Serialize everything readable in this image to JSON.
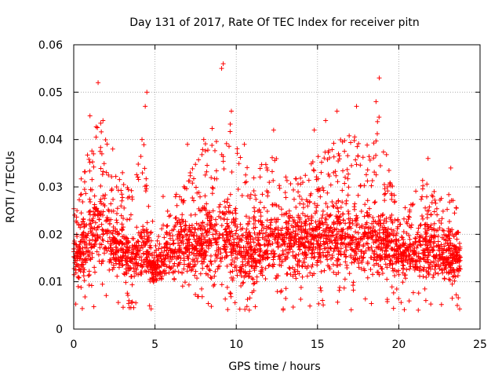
{
  "chart_data": {
    "type": "scatter",
    "title": "Day 131 of 2017, Rate Of TEC Index for receiver pitn",
    "xlabel": "GPS time / hours",
    "ylabel": "ROTI / TECUs",
    "xlim": [
      0,
      25
    ],
    "ylim": [
      0,
      0.06
    ],
    "xticks": [
      0,
      5,
      10,
      15,
      20,
      25
    ],
    "xtick_labels": [
      "0",
      "5",
      "10",
      "15",
      "20",
      "25"
    ],
    "yticks": [
      0,
      0.01,
      0.02,
      0.03,
      0.04,
      0.05,
      0.06
    ],
    "ytick_labels": [
      "0",
      "0.01",
      "0.02",
      "0.03",
      "0.04",
      "0.05",
      "0.06"
    ],
    "grid": true,
    "marker": "plus",
    "marker_color": "#ff0000",
    "series": [
      {
        "name": "ROTI",
        "x_range": [
          0,
          23.8
        ],
        "sample_points": [
          {
            "x": 0.2,
            "y": 0.025
          },
          {
            "x": 0.6,
            "y": 0.012
          },
          {
            "x": 1.0,
            "y": 0.045
          },
          {
            "x": 1.5,
            "y": 0.052
          },
          {
            "x": 1.8,
            "y": 0.044
          },
          {
            "x": 2.4,
            "y": 0.038
          },
          {
            "x": 3.0,
            "y": 0.033
          },
          {
            "x": 3.4,
            "y": 0.006
          },
          {
            "x": 4.2,
            "y": 0.04
          },
          {
            "x": 4.4,
            "y": 0.047
          },
          {
            "x": 4.5,
            "y": 0.05
          },
          {
            "x": 5.5,
            "y": 0.028
          },
          {
            "x": 7.0,
            "y": 0.039
          },
          {
            "x": 8.0,
            "y": 0.04
          },
          {
            "x": 9.1,
            "y": 0.055
          },
          {
            "x": 9.2,
            "y": 0.056
          },
          {
            "x": 9.7,
            "y": 0.046
          },
          {
            "x": 10.5,
            "y": 0.039
          },
          {
            "x": 10.8,
            "y": 0.004
          },
          {
            "x": 12.3,
            "y": 0.042
          },
          {
            "x": 14.8,
            "y": 0.042
          },
          {
            "x": 15.5,
            "y": 0.044
          },
          {
            "x": 16.2,
            "y": 0.046
          },
          {
            "x": 17.4,
            "y": 0.047
          },
          {
            "x": 18.6,
            "y": 0.048
          },
          {
            "x": 18.8,
            "y": 0.053
          },
          {
            "x": 19.3,
            "y": 0.03
          },
          {
            "x": 21.2,
            "y": 0.004
          },
          {
            "x": 21.8,
            "y": 0.036
          },
          {
            "x": 23.2,
            "y": 0.034
          },
          {
            "x": 23.6,
            "y": 0.005
          }
        ],
        "envelope": [
          {
            "x": 0.0,
            "typical_low": 0.01,
            "typical_high": 0.02,
            "peak": 0.028
          },
          {
            "x": 1.0,
            "typical_low": 0.01,
            "typical_high": 0.025,
            "peak": 0.046
          },
          {
            "x": 1.6,
            "typical_low": 0.012,
            "typical_high": 0.03,
            "peak": 0.052
          },
          {
            "x": 2.5,
            "typical_low": 0.01,
            "typical_high": 0.024,
            "peak": 0.038
          },
          {
            "x": 3.5,
            "typical_low": 0.008,
            "typical_high": 0.02,
            "peak": 0.033
          },
          {
            "x": 4.4,
            "typical_low": 0.01,
            "typical_high": 0.022,
            "peak": 0.05
          },
          {
            "x": 5.0,
            "typical_low": 0.009,
            "typical_high": 0.015,
            "peak": 0.02
          },
          {
            "x": 6.0,
            "typical_low": 0.01,
            "typical_high": 0.022,
            "peak": 0.029
          },
          {
            "x": 7.5,
            "typical_low": 0.01,
            "typical_high": 0.024,
            "peak": 0.04
          },
          {
            "x": 9.2,
            "typical_low": 0.01,
            "typical_high": 0.028,
            "peak": 0.056
          },
          {
            "x": 10.5,
            "typical_low": 0.008,
            "typical_high": 0.022,
            "peak": 0.04
          },
          {
            "x": 12.3,
            "typical_low": 0.01,
            "typical_high": 0.026,
            "peak": 0.042
          },
          {
            "x": 14.0,
            "typical_low": 0.01,
            "typical_high": 0.025,
            "peak": 0.036
          },
          {
            "x": 16.0,
            "typical_low": 0.01,
            "typical_high": 0.028,
            "peak": 0.046
          },
          {
            "x": 17.5,
            "typical_low": 0.01,
            "typical_high": 0.027,
            "peak": 0.047
          },
          {
            "x": 18.8,
            "typical_low": 0.01,
            "typical_high": 0.026,
            "peak": 0.053
          },
          {
            "x": 20.0,
            "typical_low": 0.01,
            "typical_high": 0.02,
            "peak": 0.025
          },
          {
            "x": 21.5,
            "typical_low": 0.01,
            "typical_high": 0.022,
            "peak": 0.036
          },
          {
            "x": 23.8,
            "typical_low": 0.009,
            "typical_high": 0.02,
            "peak": 0.03
          }
        ]
      }
    ]
  }
}
